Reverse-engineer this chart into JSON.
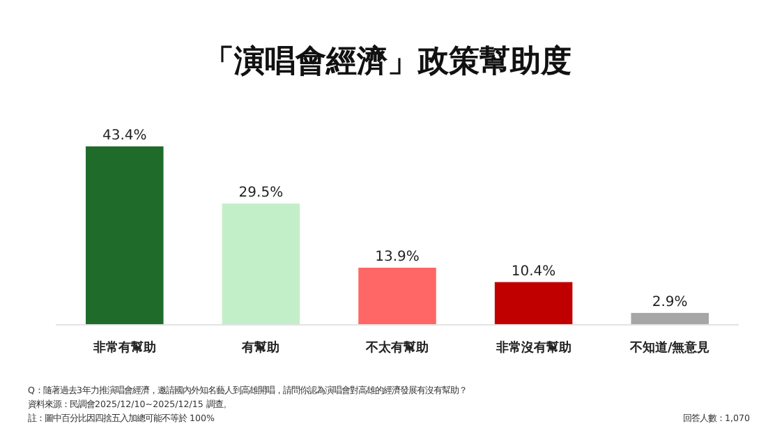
{
  "chart_data": {
    "type": "bar",
    "title": "「演唱會經濟」政策幫助度",
    "categories": [
      "非常有幫助",
      "有幫助",
      "不太有幫助",
      "非常沒有幫助",
      "不知道/無意見"
    ],
    "values": [
      43.4,
      29.5,
      13.9,
      10.4,
      2.9
    ],
    "value_labels": [
      "43.4%",
      "29.5%",
      "13.9%",
      "10.4%",
      "2.9%"
    ],
    "colors": [
      "#1e6b2a",
      "#c3efc8",
      "#ff6666",
      "#c00000",
      "#a6a6a6"
    ],
    "annotations": [
      "Q：隨著過去3年力推演唱會經濟，邀請國內外知名藝人到高雄開唱，請問你認為演唱會對高雄的經濟發展有沒有幫助？",
      "資料來源：民調會2025/12/10~2025/12/15 調查。",
      "註：圖中百分比因四捨五入加總可能不等於 100%",
      "回答人數：1,070"
    ]
  }
}
